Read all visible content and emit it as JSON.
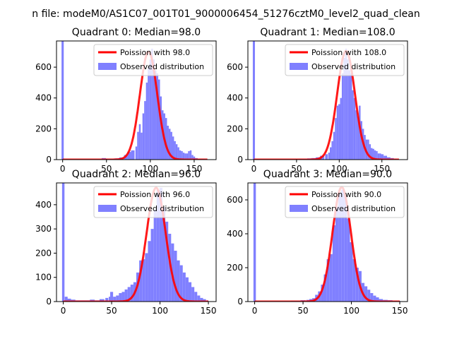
{
  "figure": {
    "suptitle": "n file: modeM0/AS1C07_001T01_9000006454_51276cztM0_level2_quad_clean"
  },
  "legend_labels": {
    "line": "Poission with",
    "hist": "Observed distribution"
  },
  "colors": {
    "hist": "#8080ff",
    "line": "#ff0000"
  },
  "chart_data": [
    {
      "type": "bar+line",
      "title": "Quadrant 0: Median=98.0",
      "median": 98.0,
      "legend_line": "Poission with 98.0",
      "xlim": [
        -7,
        175
      ],
      "ylim": [
        0,
        770
      ],
      "xticks": [
        0,
        50,
        100,
        150
      ],
      "yticks": [
        0,
        200,
        400,
        600
      ],
      "zero_bin": 770,
      "bins_x": [
        47,
        52,
        57,
        62,
        67,
        72,
        76,
        80,
        84,
        86,
        88,
        90,
        92,
        94,
        96,
        98,
        100,
        102,
        104,
        106,
        108,
        110,
        112,
        114,
        116,
        118,
        120,
        122,
        124,
        126,
        128,
        130,
        132,
        134,
        136,
        138,
        140,
        142,
        144,
        146,
        148,
        150,
        152,
        156,
        160,
        164
      ],
      "bins_y": [
        10,
        5,
        5,
        8,
        14,
        30,
        50,
        60,
        85,
        180,
        230,
        175,
        300,
        380,
        500,
        600,
        650,
        720,
        650,
        580,
        560,
        520,
        410,
        320,
        300,
        270,
        220,
        200,
        180,
        150,
        120,
        100,
        80,
        60,
        55,
        45,
        40,
        40,
        55,
        60,
        30,
        20,
        10,
        5,
        5,
        5
      ],
      "poisson_lambda": 98,
      "poisson_peak": 700,
      "poisson_range": [
        0,
        165
      ]
    },
    {
      "type": "bar+line",
      "title": "Quadrant 1: Median=108.0",
      "median": 108.0,
      "legend_line": "Poission with 108.0",
      "xlim": [
        -7,
        180
      ],
      "ylim": [
        0,
        770
      ],
      "xticks": [
        0,
        50,
        100,
        150
      ],
      "yticks": [
        0,
        200,
        400,
        600
      ],
      "zero_bin": 770,
      "bins_x": [
        55,
        60,
        65,
        70,
        75,
        80,
        85,
        88,
        90,
        92,
        94,
        96,
        98,
        100,
        102,
        104,
        106,
        108,
        110,
        112,
        114,
        116,
        118,
        120,
        122,
        124,
        126,
        128,
        130,
        132,
        134,
        136,
        138,
        140,
        142,
        144,
        146,
        148,
        150,
        154,
        158,
        162,
        166
      ],
      "bins_y": [
        5,
        5,
        8,
        10,
        15,
        25,
        35,
        45,
        80,
        120,
        180,
        270,
        350,
        360,
        400,
        560,
        660,
        720,
        650,
        580,
        560,
        450,
        400,
        320,
        280,
        350,
        250,
        200,
        160,
        130,
        130,
        100,
        75,
        70,
        60,
        55,
        40,
        40,
        35,
        25,
        15,
        10,
        5
      ],
      "poisson_lambda": 108,
      "poisson_peak": 705,
      "poisson_range": [
        0,
        170
      ]
    },
    {
      "type": "bar+line",
      "title": "Quadrant 2: Median=96.0",
      "median": 96.0,
      "legend_line": "Poission with 96.0",
      "xlim": [
        -7,
        158
      ],
      "ylim": [
        0,
        490
      ],
      "xticks": [
        0,
        50,
        100,
        150
      ],
      "yticks": [
        0,
        100,
        200,
        300,
        400
      ],
      "zero_bin": 490,
      "bins_x": [
        3,
        6,
        10,
        15,
        20,
        25,
        30,
        35,
        40,
        45,
        48,
        50,
        53,
        56,
        59,
        62,
        65,
        68,
        71,
        74,
        77,
        80,
        83,
        86,
        89,
        92,
        95,
        98,
        101,
        104,
        107,
        110,
        113,
        116,
        119,
        122,
        125,
        128,
        131,
        134,
        137,
        140,
        143,
        146,
        149
      ],
      "bins_y": [
        20,
        12,
        8,
        5,
        5,
        5,
        8,
        5,
        10,
        15,
        20,
        40,
        20,
        25,
        35,
        40,
        50,
        60,
        70,
        80,
        120,
        170,
        175,
        200,
        250,
        300,
        380,
        460,
        470,
        390,
        330,
        280,
        240,
        210,
        170,
        150,
        120,
        100,
        80,
        60,
        40,
        25,
        15,
        10,
        5
      ],
      "poisson_lambda": 96,
      "poisson_peak": 470,
      "poisson_range": [
        0,
        150
      ]
    },
    {
      "type": "bar+line",
      "title": "Quadrant 3: Median=90.0",
      "median": 90.0,
      "legend_line": "Poission with 90.0",
      "xlim": [
        -7,
        158
      ],
      "ylim": [
        0,
        700
      ],
      "xticks": [
        0,
        50,
        100,
        150
      ],
      "yticks": [
        0,
        200,
        400,
        600
      ],
      "zero_bin": 700,
      "bins_x": [
        40,
        45,
        50,
        55,
        58,
        61,
        64,
        67,
        70,
        73,
        76,
        79,
        82,
        85,
        88,
        91,
        94,
        97,
        100,
        103,
        106,
        109,
        112,
        115,
        118,
        121,
        124,
        127,
        130,
        135,
        140,
        145,
        150
      ],
      "bins_y": [
        5,
        5,
        8,
        10,
        15,
        20,
        40,
        60,
        100,
        160,
        250,
        280,
        450,
        560,
        640,
        660,
        620,
        490,
        350,
        250,
        200,
        180,
        110,
        90,
        70,
        50,
        35,
        25,
        15,
        10,
        8,
        5,
        3
      ],
      "poisson_lambda": 90,
      "poisson_peak": 675,
      "poisson_range": [
        0,
        150
      ]
    }
  ]
}
